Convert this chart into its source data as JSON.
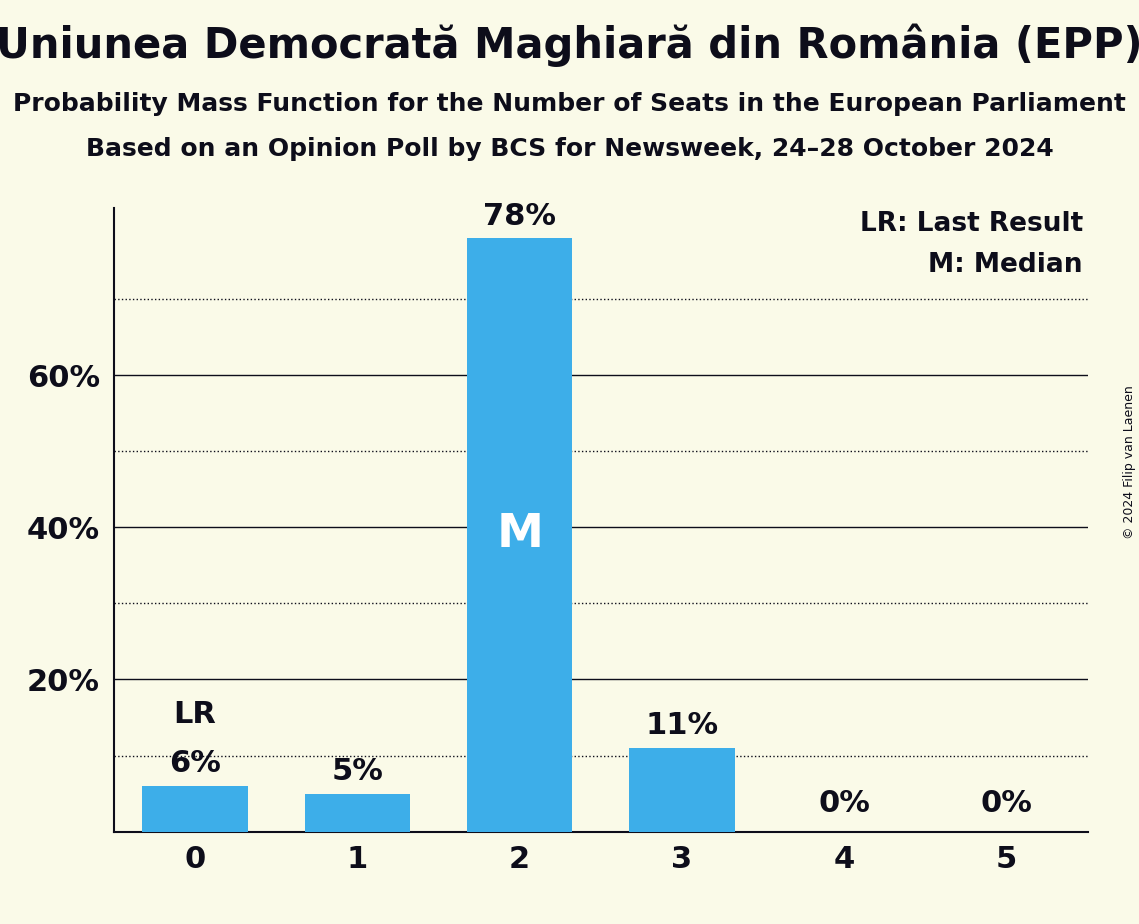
{
  "title": "Uniunea Democrată Maghiară din România (EPP)",
  "subtitle1": "Probability Mass Function for the Number of Seats in the European Parliament",
  "subtitle2": "Based on an Opinion Poll by BCS for Newsweek, 24–28 October 2024",
  "copyright": "© 2024 Filip van Laenen",
  "categories": [
    0,
    1,
    2,
    3,
    4,
    5
  ],
  "values": [
    0.06,
    0.05,
    0.78,
    0.11,
    0.0,
    0.0
  ],
  "bar_color": "#3daee9",
  "background_color": "#fafae8",
  "text_color": "#0d0d1a",
  "median_bar": 2,
  "last_result_bar": 0,
  "median_label": "M",
  "last_result_label": "LR",
  "legend_lr": "LR: Last Result",
  "legend_m": "M: Median",
  "ylim": [
    0,
    0.82
  ],
  "major_yticks": [
    0.2,
    0.4,
    0.6
  ],
  "major_ytick_labels": [
    "20%",
    "40%",
    "60%"
  ],
  "minor_yticks": [
    0.1,
    0.3,
    0.5,
    0.7
  ],
  "bar_width": 0.65,
  "value_labels": [
    "6%",
    "5%",
    "78%",
    "11%",
    "0%",
    "0%"
  ]
}
